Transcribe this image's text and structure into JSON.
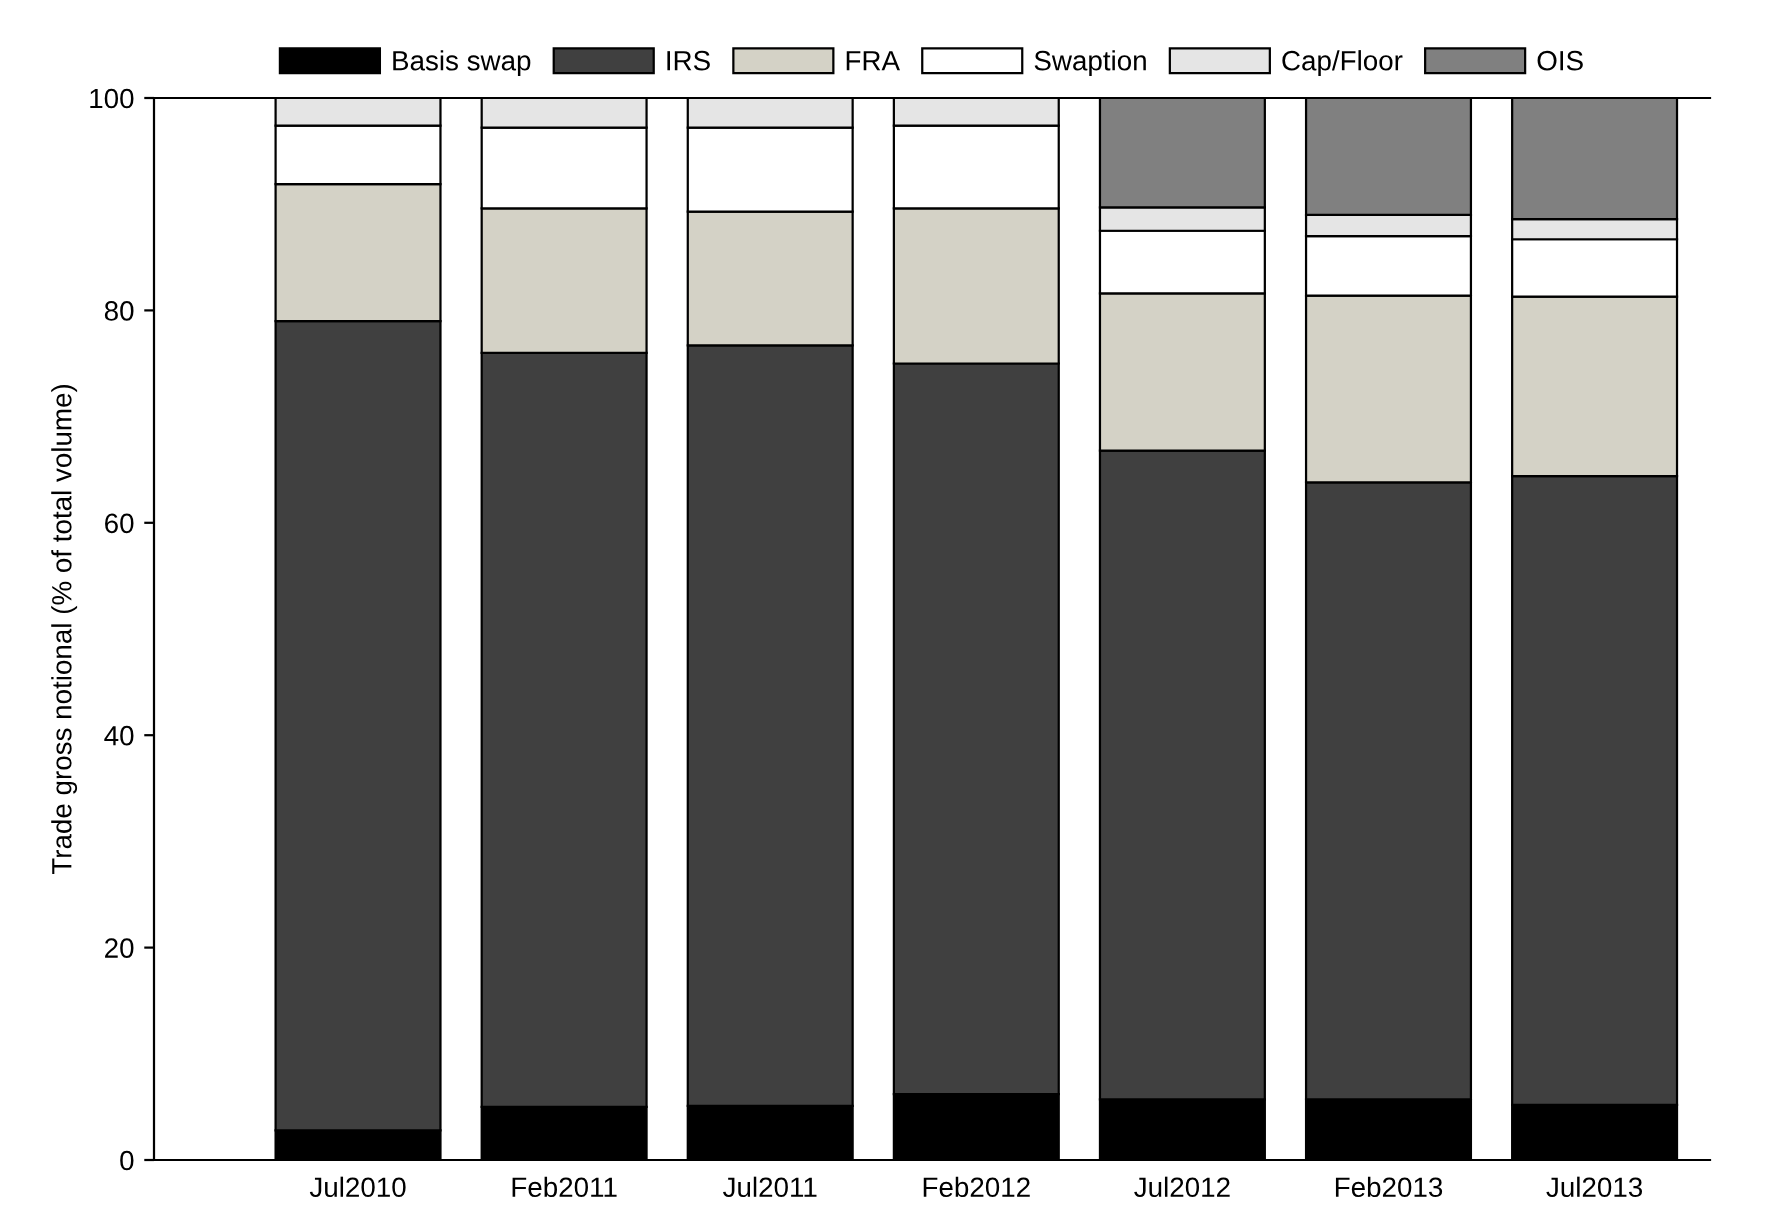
{
  "chart_data": {
    "type": "bar",
    "stacked": true,
    "ylabel": "Trade gross notional (% of total volume)",
    "categories": [
      "Jul2010",
      "Feb2011",
      "Jul2011",
      "Feb2012",
      "Jul2012",
      "Feb2013",
      "Jul2013"
    ],
    "series": [
      {
        "name": "Basis swap",
        "color": "#000000",
        "values": [
          2.8,
          5.0,
          5.1,
          6.2,
          5.7,
          5.7,
          5.2
        ]
      },
      {
        "name": "IRS",
        "color": "#404040",
        "values": [
          76.2,
          71.0,
          71.6,
          68.8,
          61.1,
          58.1,
          59.2
        ]
      },
      {
        "name": "FRA",
        "color": "#d4d2c6",
        "values": [
          12.9,
          13.6,
          12.6,
          14.6,
          14.8,
          17.6,
          16.9
        ]
      },
      {
        "name": "Swaption",
        "color": "#ffffff",
        "values": [
          5.5,
          7.6,
          7.9,
          7.8,
          5.9,
          5.6,
          5.4
        ]
      },
      {
        "name": "Cap/Floor",
        "color": "#e5e5e5",
        "values": [
          2.6,
          2.8,
          2.8,
          2.6,
          2.2,
          2.0,
          1.9
        ]
      },
      {
        "name": "OIS",
        "color": "#808080",
        "values": [
          null,
          null,
          null,
          null,
          10.3,
          11.0,
          11.4
        ]
      }
    ],
    "ylim": [
      0,
      100
    ],
    "yticks": [
      0,
      20,
      40,
      60,
      80,
      100
    ],
    "grid": false,
    "legend": "top"
  }
}
